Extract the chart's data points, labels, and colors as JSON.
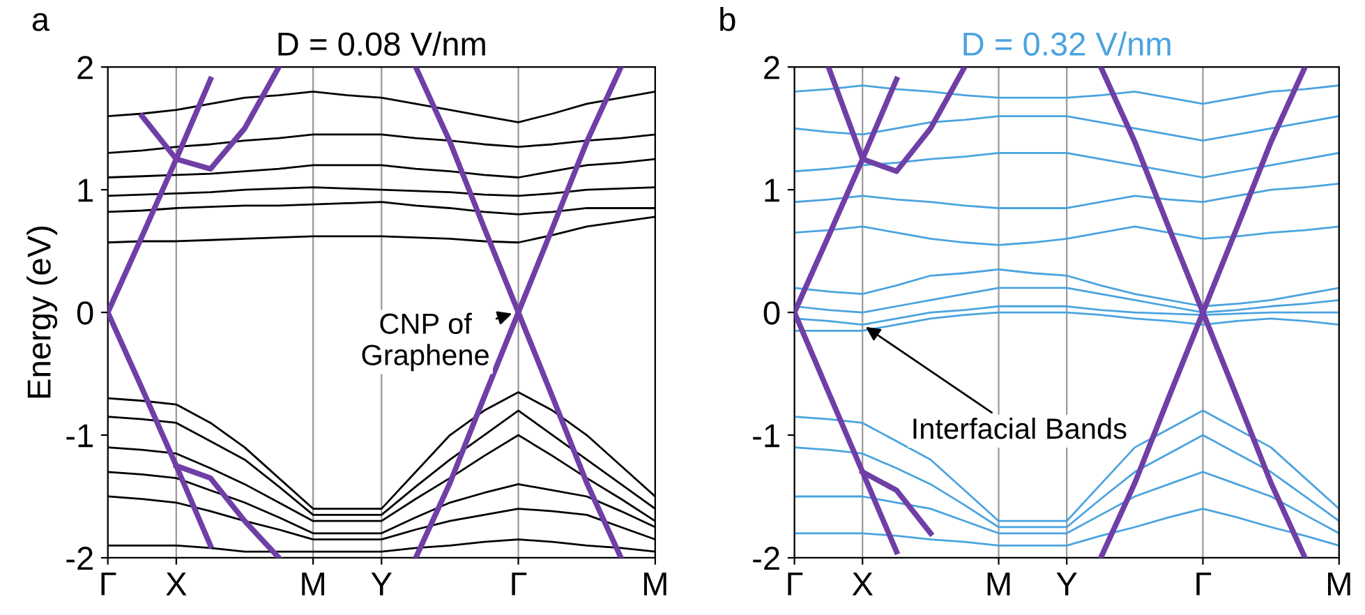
{
  "chart_data": [
    {
      "type": "line",
      "title": "D = 0.08 V/nm",
      "ylabel": "Energy (eV)",
      "annotations": [
        "a",
        "CNP of\nGraphene"
      ],
      "categories": [
        "Γ",
        null,
        "X",
        null,
        null,
        null,
        "M",
        null,
        "Y",
        null,
        null,
        null,
        "Γ",
        null,
        null,
        null,
        "M"
      ],
      "ylim": [
        -2,
        2
      ],
      "yticks": [
        -2,
        -1,
        0,
        1,
        2
      ],
      "grid": "x",
      "line_style": "solid",
      "series": [
        {
          "color": "#000000",
          "values": [
            0.57,
            0.58,
            0.58,
            0.59,
            0.6,
            0.61,
            0.62,
            0.62,
            0.62,
            0.61,
            0.6,
            0.58,
            0.57,
            0.63,
            0.7,
            0.74,
            0.78
          ]
        },
        {
          "color": "#000000",
          "values": [
            0.82,
            0.83,
            0.85,
            0.86,
            0.87,
            0.87,
            0.88,
            0.89,
            0.9,
            0.87,
            0.85,
            0.82,
            0.8,
            0.82,
            0.85,
            0.85,
            0.85
          ]
        },
        {
          "color": "#000000",
          "values": [
            0.95,
            0.96,
            0.97,
            0.98,
            1.0,
            1.01,
            1.02,
            1.01,
            1.0,
            0.99,
            0.98,
            0.96,
            0.95,
            0.97,
            1.0,
            1.01,
            1.02
          ]
        },
        {
          "color": "#000000",
          "values": [
            1.1,
            1.11,
            1.12,
            1.13,
            1.15,
            1.17,
            1.2,
            1.2,
            1.2,
            1.17,
            1.15,
            1.12,
            1.1,
            1.15,
            1.2,
            1.22,
            1.25
          ]
        },
        {
          "color": "#000000",
          "values": [
            1.3,
            1.32,
            1.35,
            1.37,
            1.4,
            1.42,
            1.45,
            1.45,
            1.45,
            1.42,
            1.4,
            1.37,
            1.35,
            1.37,
            1.4,
            1.42,
            1.45
          ]
        },
        {
          "color": "#000000",
          "values": [
            1.6,
            1.62,
            1.65,
            1.7,
            1.75,
            1.77,
            1.8,
            1.77,
            1.75,
            1.7,
            1.65,
            1.6,
            1.55,
            1.62,
            1.7,
            1.75,
            1.8
          ]
        },
        {
          "color": "#000000",
          "values": [
            -0.7,
            -0.72,
            -0.75,
            -0.9,
            -1.1,
            -1.35,
            -1.6,
            -1.6,
            -1.6,
            -1.3,
            -1.0,
            -0.8,
            -0.65,
            -0.8,
            -1.0,
            -1.25,
            -1.5
          ]
        },
        {
          "color": "#000000",
          "values": [
            -0.85,
            -0.87,
            -0.9,
            -1.05,
            -1.2,
            -1.42,
            -1.65,
            -1.65,
            -1.65,
            -1.42,
            -1.2,
            -1.0,
            -0.8,
            -1.0,
            -1.2,
            -1.4,
            -1.6
          ]
        },
        {
          "color": "#000000",
          "values": [
            -1.1,
            -1.12,
            -1.15,
            -1.27,
            -1.4,
            -1.55,
            -1.7,
            -1.7,
            -1.7,
            -1.52,
            -1.35,
            -1.17,
            -1.0,
            -1.17,
            -1.35,
            -1.52,
            -1.7
          ]
        },
        {
          "color": "#000000",
          "values": [
            -1.3,
            -1.32,
            -1.35,
            -1.45,
            -1.55,
            -1.67,
            -1.8,
            -1.8,
            -1.8,
            -1.67,
            -1.55,
            -1.47,
            -1.4,
            -1.45,
            -1.5,
            -1.62,
            -1.75
          ]
        },
        {
          "color": "#000000",
          "values": [
            -1.5,
            -1.52,
            -1.55,
            -1.62,
            -1.7,
            -1.77,
            -1.85,
            -1.85,
            -1.85,
            -1.77,
            -1.7,
            -1.65,
            -1.6,
            -1.62,
            -1.65,
            -1.75,
            -1.85
          ]
        },
        {
          "color": "#000000",
          "values": [
            -1.9,
            -1.9,
            -1.9,
            -1.92,
            -1.95,
            -1.95,
            -1.95,
            -1.95,
            -1.95,
            -1.92,
            -1.9,
            -1.87,
            -1.85,
            -1.87,
            -1.9,
            -1.92,
            -1.95
          ]
        },
        {
          "color": "#6f3fa6",
          "values": [
            0,
            0.62,
            1.25,
            1.9,
            null,
            null,
            null,
            null,
            null,
            null,
            null,
            null,
            null,
            null,
            null,
            null,
            null
          ]
        },
        {
          "color": "#6f3fa6",
          "values": [
            null,
            1.6,
            1.25,
            1.17,
            1.5,
            2.0,
            null,
            null,
            null,
            null,
            null,
            null,
            null,
            null,
            null,
            null,
            null
          ]
        },
        {
          "color": "#6f3fa6",
          "values": [
            0,
            -0.62,
            -1.25,
            -1.9,
            null,
            null,
            null,
            null,
            null,
            null,
            null,
            null,
            null,
            null,
            null,
            null,
            null
          ]
        },
        {
          "color": "#6f3fa6",
          "values": [
            null,
            null,
            -1.25,
            -1.35,
            -1.7,
            -2.0,
            null,
            null,
            null,
            null,
            null,
            null,
            null,
            null,
            null,
            null,
            null
          ]
        },
        {
          "color": "#6f3fa6",
          "values": [
            null,
            null,
            null,
            null,
            null,
            null,
            null,
            null,
            null,
            2.0,
            1.39,
            0.69,
            0,
            -0.69,
            -1.39,
            -2.0,
            null
          ]
        },
        {
          "color": "#6f3fa6",
          "values": [
            null,
            null,
            null,
            null,
            null,
            null,
            null,
            null,
            null,
            -2.0,
            -1.39,
            -0.69,
            0,
            0.69,
            1.39,
            2.0,
            null
          ]
        }
      ]
    },
    {
      "type": "line",
      "title": "D = 0.32 V/nm",
      "annotations": [
        "b",
        {
          "text": "Interfacial Bands",
          "x": "X",
          "y": -0.1
        }
      ],
      "categories": [
        "Γ",
        null,
        "X",
        null,
        null,
        null,
        "M",
        null,
        "Y",
        null,
        null,
        null,
        "Γ",
        null,
        null,
        null,
        "M"
      ],
      "ylim": [
        -2,
        2
      ],
      "yticks": [
        -2,
        -1,
        0,
        1,
        2
      ],
      "grid": "x",
      "line_style": "solid",
      "series": [
        {
          "color": "#6f3fa6",
          "values": [
            0,
            0.62,
            1.25,
            1.9,
            null,
            null,
            null,
            null,
            null,
            null,
            null,
            null,
            null,
            null,
            null,
            null,
            null
          ]
        },
        {
          "color": "#6f3fa6",
          "values": [
            null,
            2.0,
            1.25,
            1.15,
            1.5,
            2.0,
            null,
            null,
            null,
            null,
            null,
            null,
            null,
            null,
            null,
            null,
            null
          ]
        },
        {
          "color": "#6f3fa6",
          "values": [
            0,
            -0.65,
            -1.3,
            -1.95,
            null,
            null,
            null,
            null,
            null,
            null,
            null,
            null,
            null,
            null,
            null,
            null,
            null
          ]
        },
        {
          "color": "#6f3fa6",
          "values": [
            null,
            null,
            -1.3,
            -1.45,
            -1.8,
            null,
            null,
            null,
            null,
            null,
            null,
            null,
            null,
            null,
            null,
            null,
            null
          ]
        },
        {
          "color": "#6f3fa6",
          "values": [
            null,
            null,
            null,
            null,
            null,
            null,
            null,
            null,
            null,
            2.0,
            1.39,
            0.69,
            0,
            -0.69,
            -1.39,
            -2.0,
            null
          ]
        },
        {
          "color": "#6f3fa6",
          "values": [
            null,
            null,
            null,
            null,
            null,
            null,
            null,
            null,
            null,
            -2.0,
            -1.39,
            -0.69,
            0,
            0.69,
            1.39,
            2.0,
            null
          ]
        },
        {
          "color": "#4aa3df",
          "values": [
            0.2,
            0.17,
            0.15,
            0.22,
            0.3,
            0.32,
            0.35,
            0.32,
            0.3,
            0.22,
            0.15,
            0.1,
            0.05,
            0.07,
            0.1,
            0.15,
            0.2
          ]
        },
        {
          "color": "#4aa3df",
          "values": [
            0.05,
            0.02,
            0.0,
            0.05,
            0.1,
            0.15,
            0.2,
            0.2,
            0.2,
            0.15,
            0.1,
            0.05,
            0.0,
            0.02,
            0.05,
            0.07,
            0.1
          ]
        },
        {
          "color": "#4aa3df",
          "values": [
            -0.05,
            -0.07,
            -0.1,
            -0.05,
            0.0,
            0.02,
            0.05,
            0.05,
            0.05,
            0.02,
            0.0,
            -0.01,
            -0.02,
            -0.01,
            0.0,
            0.0,
            0.0
          ]
        },
        {
          "color": "#4aa3df",
          "values": [
            -0.15,
            -0.15,
            -0.15,
            -0.1,
            -0.05,
            -0.02,
            0.0,
            0.0,
            0.0,
            -0.02,
            -0.05,
            -0.07,
            -0.1,
            -0.07,
            -0.05,
            -0.07,
            -0.1
          ]
        },
        {
          "color": "#4aa3df",
          "values": [
            0.65,
            0.67,
            0.7,
            0.65,
            0.6,
            0.57,
            0.55,
            0.57,
            0.6,
            0.65,
            0.7,
            0.65,
            0.6,
            0.62,
            0.65,
            0.67,
            0.7
          ]
        },
        {
          "color": "#4aa3df",
          "values": [
            0.9,
            0.92,
            0.95,
            0.92,
            0.9,
            0.87,
            0.85,
            0.85,
            0.85,
            0.9,
            0.95,
            0.92,
            0.9,
            0.95,
            1.0,
            1.02,
            1.05
          ]
        },
        {
          "color": "#4aa3df",
          "values": [
            1.15,
            1.17,
            1.2,
            1.22,
            1.25,
            1.27,
            1.3,
            1.3,
            1.3,
            1.25,
            1.2,
            1.15,
            1.1,
            1.15,
            1.2,
            1.25,
            1.3
          ]
        },
        {
          "color": "#4aa3df",
          "values": [
            1.5,
            1.47,
            1.45,
            1.5,
            1.55,
            1.57,
            1.6,
            1.6,
            1.6,
            1.55,
            1.5,
            1.45,
            1.4,
            1.45,
            1.5,
            1.55,
            1.6
          ]
        },
        {
          "color": "#4aa3df",
          "values": [
            1.8,
            1.82,
            1.85,
            1.82,
            1.8,
            1.77,
            1.75,
            1.75,
            1.75,
            1.77,
            1.8,
            1.75,
            1.7,
            1.75,
            1.8,
            1.82,
            1.85
          ]
        },
        {
          "color": "#4aa3df",
          "values": [
            -0.85,
            -0.87,
            -0.9,
            -1.05,
            -1.2,
            -1.45,
            -1.7,
            -1.7,
            -1.7,
            -1.4,
            -1.1,
            -0.95,
            -0.8,
            -0.95,
            -1.1,
            -1.35,
            -1.6
          ]
        },
        {
          "color": "#4aa3df",
          "values": [
            -1.1,
            -1.12,
            -1.15,
            -1.27,
            -1.4,
            -1.57,
            -1.75,
            -1.75,
            -1.75,
            -1.52,
            -1.3,
            -1.15,
            -1.0,
            -1.15,
            -1.3,
            -1.5,
            -1.7
          ]
        },
        {
          "color": "#4aa3df",
          "values": [
            -1.5,
            -1.5,
            -1.5,
            -1.55,
            -1.6,
            -1.7,
            -1.8,
            -1.8,
            -1.8,
            -1.65,
            -1.5,
            -1.4,
            -1.3,
            -1.4,
            -1.5,
            -1.65,
            -1.8
          ]
        },
        {
          "color": "#4aa3df",
          "values": [
            -1.8,
            -1.8,
            -1.8,
            -1.82,
            -1.85,
            -1.87,
            -1.9,
            -1.9,
            -1.9,
            -1.82,
            -1.75,
            -1.67,
            -1.6,
            -1.67,
            -1.75,
            -1.82,
            -1.9
          ]
        }
      ]
    }
  ]
}
